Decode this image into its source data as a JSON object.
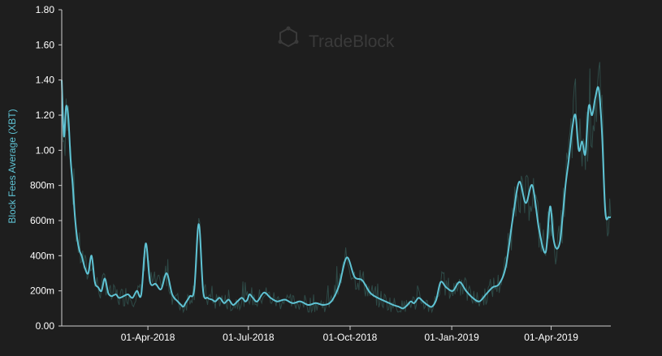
{
  "watermark": {
    "text": "TradeBlock"
  },
  "colors": {
    "background": "#1e1e1e",
    "line": "#5fc3d4",
    "noise": "#2e4a47",
    "axis_title": "#5fc3d4",
    "tick_text": "#ffffff",
    "axis_line": "#cfcfcf",
    "watermark": "#3a3a3a"
  },
  "chart_data": {
    "type": "line",
    "title": "",
    "xlabel": "",
    "ylabel": "Block Fees Average (XBT)",
    "ylim": [
      0,
      1.8
    ],
    "xlim": [
      "2018-01-13",
      "2019-05-25"
    ],
    "grid": false,
    "legend": "none",
    "y_ticks": [
      {
        "value": 0,
        "label": "0.00"
      },
      {
        "value": 0.2,
        "label": "200m"
      },
      {
        "value": 0.4,
        "label": "400m"
      },
      {
        "value": 0.6,
        "label": "600m"
      },
      {
        "value": 0.8,
        "label": "800m"
      },
      {
        "value": 1.0,
        "label": "1.00"
      },
      {
        "value": 1.2,
        "label": "1.20"
      },
      {
        "value": 1.4,
        "label": "1.40"
      },
      {
        "value": 1.6,
        "label": "1.60"
      },
      {
        "value": 1.8,
        "label": "1.80"
      }
    ],
    "x_ticks": [
      {
        "value": "2018-04-01",
        "label": "01-Apr-2018"
      },
      {
        "value": "2018-07-01",
        "label": "01-Jul-2018"
      },
      {
        "value": "2018-10-01",
        "label": "01-Oct-2018"
      },
      {
        "value": "2019-01-01",
        "label": "01-Jan-2019"
      },
      {
        "value": "2019-04-01",
        "label": "01-Apr-2019"
      }
    ],
    "series": [
      {
        "style": "smoothed",
        "x": [
          "2018-01-13",
          "2018-01-15",
          "2018-01-17",
          "2018-01-19",
          "2018-01-21",
          "2018-01-23",
          "2018-01-25",
          "2018-01-27",
          "2018-01-29",
          "2018-01-31",
          "2018-02-03",
          "2018-02-06",
          "2018-02-09",
          "2018-02-12",
          "2018-02-15",
          "2018-02-18",
          "2018-02-21",
          "2018-02-24",
          "2018-02-27",
          "2018-03-03",
          "2018-03-06",
          "2018-03-10",
          "2018-03-14",
          "2018-03-18",
          "2018-03-22",
          "2018-03-26",
          "2018-03-30",
          "2018-04-03",
          "2018-04-08",
          "2018-04-13",
          "2018-04-18",
          "2018-04-23",
          "2018-04-28",
          "2018-05-01",
          "2018-05-03",
          "2018-05-05",
          "2018-05-07",
          "2018-05-09",
          "2018-05-13",
          "2018-05-17",
          "2018-05-21",
          "2018-05-25",
          "2018-05-29",
          "2018-06-01",
          "2018-06-05",
          "2018-06-09",
          "2018-06-13",
          "2018-06-17",
          "2018-06-21",
          "2018-06-25",
          "2018-06-28",
          "2018-06-30",
          "2018-07-02",
          "2018-07-05",
          "2018-07-09",
          "2018-07-15",
          "2018-07-21",
          "2018-07-27",
          "2018-08-03",
          "2018-08-10",
          "2018-08-17",
          "2018-08-24",
          "2018-08-31",
          "2018-09-07",
          "2018-09-14",
          "2018-09-21",
          "2018-09-28",
          "2018-10-05",
          "2018-10-12",
          "2018-10-19",
          "2018-10-26",
          "2018-11-02",
          "2018-11-09",
          "2018-11-14",
          "2018-11-18",
          "2018-11-22",
          "2018-11-25",
          "2018-11-28",
          "2018-12-02",
          "2018-12-06",
          "2018-12-10",
          "2018-12-14",
          "2018-12-18",
          "2018-12-22",
          "2018-12-27",
          "2019-01-02",
          "2019-01-08",
          "2019-01-14",
          "2019-01-20",
          "2019-01-26",
          "2019-02-01",
          "2019-02-07",
          "2019-02-13",
          "2019-02-19",
          "2019-02-25",
          "2019-03-03",
          "2019-03-09",
          "2019-03-15",
          "2019-03-21",
          "2019-03-27",
          "2019-03-31",
          "2019-04-03",
          "2019-04-06",
          "2019-04-09",
          "2019-04-11",
          "2019-04-14",
          "2019-04-17",
          "2019-04-20",
          "2019-04-23",
          "2019-04-26",
          "2019-04-29",
          "2019-05-02",
          "2019-05-05",
          "2019-05-08",
          "2019-05-11",
          "2019-05-14",
          "2019-05-17",
          "2019-05-20",
          "2019-05-23",
          "2019-05-25"
        ],
        "values": [
          1.4,
          1.08,
          1.25,
          1.18,
          0.95,
          0.8,
          0.62,
          0.5,
          0.43,
          0.4,
          0.33,
          0.3,
          0.4,
          0.25,
          0.22,
          0.2,
          0.27,
          0.19,
          0.17,
          0.18,
          0.16,
          0.17,
          0.18,
          0.16,
          0.2,
          0.18,
          0.47,
          0.25,
          0.24,
          0.21,
          0.3,
          0.18,
          0.14,
          0.12,
          0.11,
          0.13,
          0.15,
          0.17,
          0.21,
          0.58,
          0.2,
          0.16,
          0.15,
          0.14,
          0.16,
          0.13,
          0.15,
          0.12,
          0.14,
          0.16,
          0.14,
          0.15,
          0.18,
          0.16,
          0.14,
          0.19,
          0.16,
          0.14,
          0.15,
          0.13,
          0.14,
          0.12,
          0.13,
          0.12,
          0.14,
          0.23,
          0.39,
          0.28,
          0.26,
          0.19,
          0.16,
          0.14,
          0.12,
          0.11,
          0.1,
          0.12,
          0.14,
          0.13,
          0.16,
          0.14,
          0.12,
          0.11,
          0.15,
          0.25,
          0.22,
          0.2,
          0.25,
          0.2,
          0.16,
          0.14,
          0.18,
          0.22,
          0.24,
          0.34,
          0.6,
          0.82,
          0.7,
          0.8,
          0.55,
          0.42,
          0.68,
          0.5,
          0.44,
          0.48,
          0.6,
          0.8,
          0.95,
          1.12,
          1.2,
          1.0,
          1.05,
          0.98,
          1.25,
          1.2,
          1.3,
          1.35,
          1.1,
          0.65,
          0.62,
          0.62
        ]
      }
    ]
  }
}
